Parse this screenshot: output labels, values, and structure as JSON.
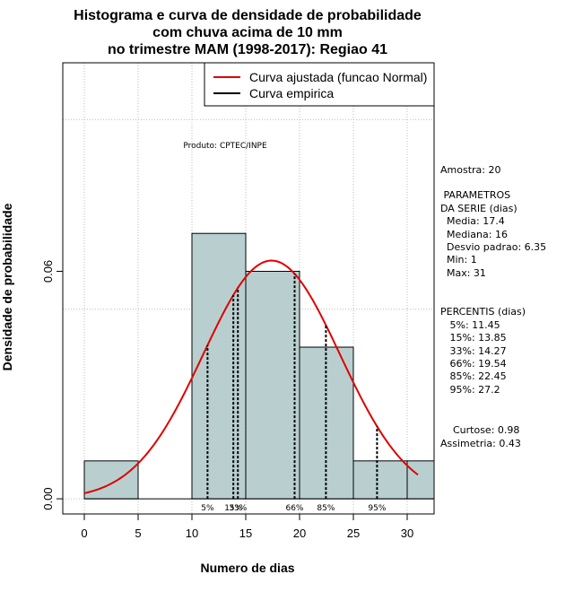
{
  "chart_data": {
    "type": "bar",
    "title": [
      "Histograma e curva de densidade de probabilidade",
      "com chuva acima de 10 mm",
      "no trimestre MAM (1998-2017): Regiao 41"
    ],
    "xlabel": "Numero de dias",
    "ylabel": "Densidade de probabilidade",
    "xlim": [
      -2,
      32.5
    ],
    "ylim": [
      -0.004,
      0.115
    ],
    "xticks": [
      0,
      5,
      10,
      15,
      20,
      25,
      30
    ],
    "yticks": [
      0.0,
      0.06
    ],
    "ytick_labels": [
      "0.00",
      "0.06"
    ],
    "grid_x": [
      0,
      5,
      10,
      15,
      20,
      25,
      30
    ],
    "grid_y": [
      0.0,
      0.05,
      0.1
    ],
    "bins": [
      {
        "from": 0,
        "to": 5,
        "density": 0.01
      },
      {
        "from": 5,
        "to": 10,
        "density": 0.0
      },
      {
        "from": 10,
        "to": 15,
        "density": 0.07
      },
      {
        "from": 15,
        "to": 20,
        "density": 0.06
      },
      {
        "from": 20,
        "to": 25,
        "density": 0.04
      },
      {
        "from": 25,
        "to": 30,
        "density": 0.01
      },
      {
        "from": 30,
        "to": 32.5,
        "density": 0.01
      }
    ],
    "bar_color": "#b9cfcf",
    "normal_curve": {
      "mean": 17.4,
      "sd": 6.35,
      "x_from": 0,
      "x_to": 31,
      "color": "#e00000"
    },
    "percentile_lines": [
      {
        "label": "5%",
        "x": 11.45
      },
      {
        "label": "15%",
        "x": 13.85
      },
      {
        "label": "33%",
        "x": 14.27
      },
      {
        "label": "66%",
        "x": 19.54
      },
      {
        "label": "85%",
        "x": 22.45
      },
      {
        "label": "95%",
        "x": 27.2
      }
    ],
    "legend": {
      "position": "top-right",
      "items": [
        {
          "label": "Curva ajustada (funcao Normal)",
          "color": "#e00000"
        },
        {
          "label": "Curva empirica",
          "color": "#000000"
        }
      ]
    },
    "annotation": "Produto: CPTEC/INPE"
  },
  "stats_panel": [
    "Amostra: 20",
    " PARAMETROS",
    "DA SERIE (dias)",
    "  Media: 17.4",
    "  Mediana: 16",
    "  Desvio padrao: 6.35",
    "  Min: 1",
    "  Max: 31",
    "PERCENTIS (dias)",
    "   5%: 11.45",
    "   15%: 13.85",
    "   33%: 14.27",
    "   66%: 19.54",
    "   85%: 22.45",
    "   95%: 27.2",
    "    Curtose: 0.98",
    "Assimetria: 0.43"
  ]
}
